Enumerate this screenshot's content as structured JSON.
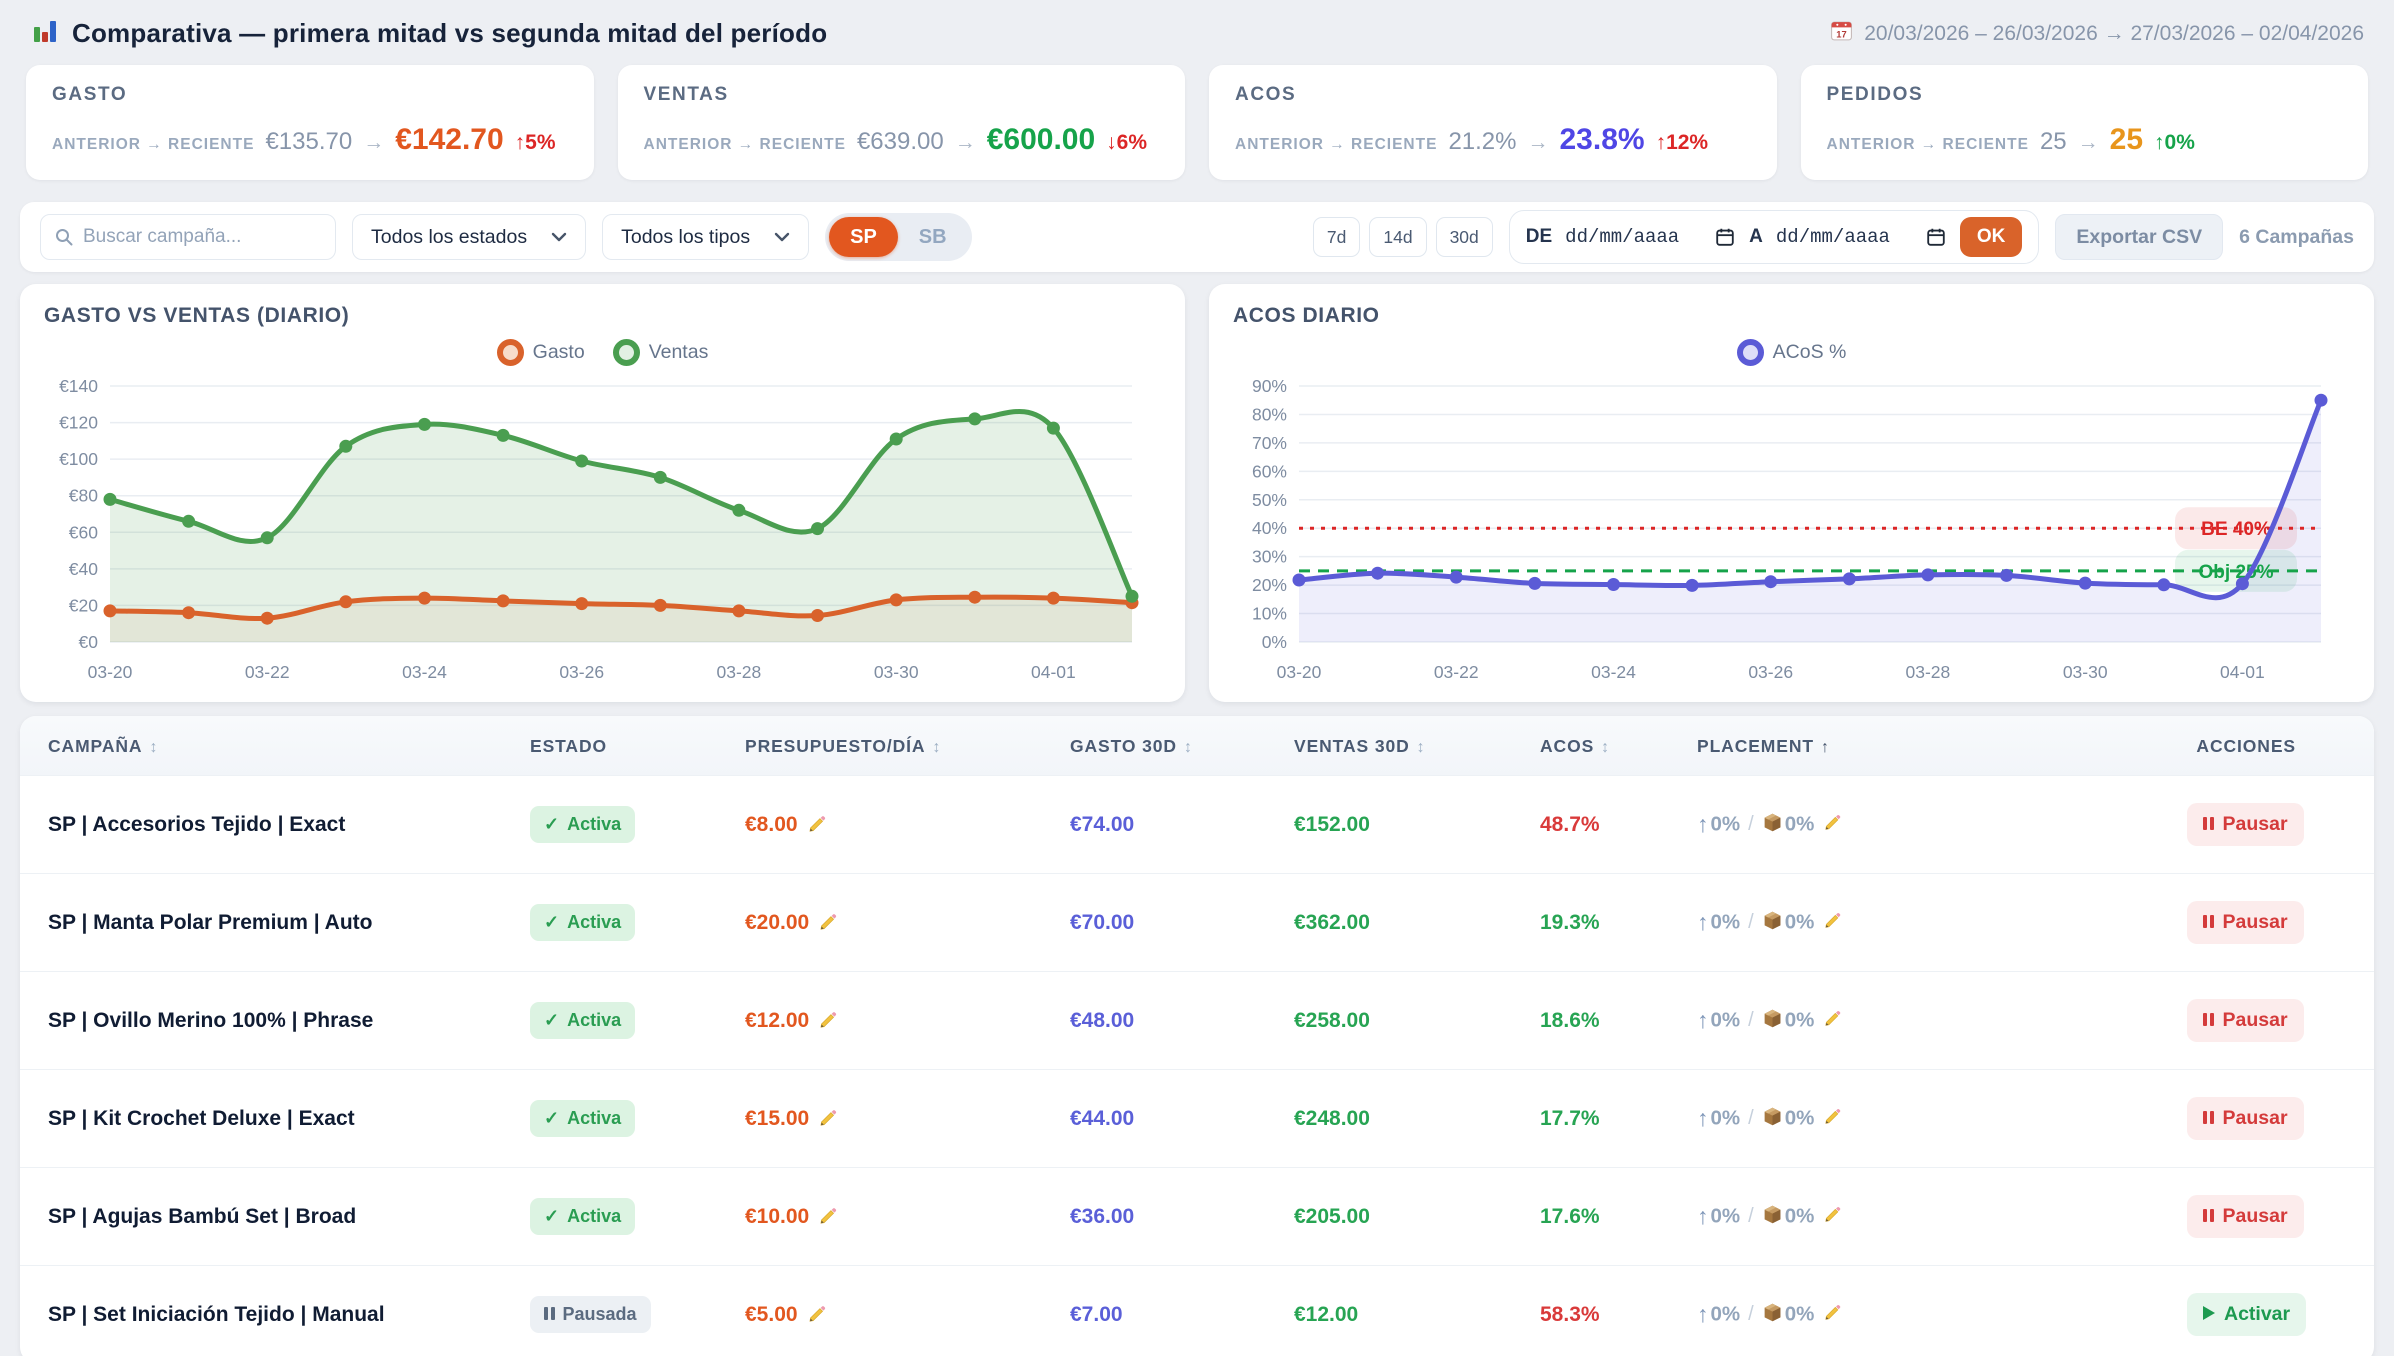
{
  "header": {
    "title": "Comparativa — primera mitad vs segunda mitad del período",
    "date_range": "20/03/2026 – 26/03/2026 → 27/03/2026 – 02/04/2026"
  },
  "kpi_meta": {
    "compare_label": "ANTERIOR → RECIENTE",
    "arrow": "→"
  },
  "kpis": [
    {
      "label": "GASTO",
      "prev": "€135.70",
      "current": "€142.70",
      "delta": "↑5%"
    },
    {
      "label": "VENTAS",
      "prev": "€639.00",
      "current": "€600.00",
      "delta": "↓6%"
    },
    {
      "label": "ACOS",
      "prev": "21.2%",
      "current": "23.8%",
      "delta": "↑12%"
    },
    {
      "label": "PEDIDOS",
      "prev": "25",
      "current": "25",
      "delta": "↑0%"
    }
  ],
  "filters": {
    "search_placeholder": "Buscar campaña...",
    "estado_select": "Todos los estados",
    "tipo_select": "Todos los tipos",
    "toggle_sp": "SP",
    "toggle_sb": "SB",
    "range_buttons": [
      "7d",
      "14d",
      "30d"
    ],
    "de_label": "DE",
    "a_label": "A",
    "date_placeholder": "dd/mm/aaaa",
    "ok_label": "OK",
    "export_label": "Exportar CSV",
    "count_label": "6 Campañas"
  },
  "colors": {
    "accent_orange": "#e2571f",
    "positive_green": "#16a34a",
    "negative_red": "#dc2626",
    "indigo": "#5b5bd6",
    "amber": "#e8951c"
  },
  "chart_data": [
    {
      "type": "line",
      "mount": "chart-gasto-ventas",
      "title": "GASTO VS VENTAS (DIARIO)",
      "x": [
        "03-20",
        "03-21",
        "03-22",
        "03-23",
        "03-24",
        "03-25",
        "03-26",
        "03-27",
        "03-28",
        "03-29",
        "03-30",
        "03-31",
        "04-01",
        "04-02"
      ],
      "xtick_indices": [
        0,
        2,
        4,
        6,
        8,
        10,
        12
      ],
      "ylim": [
        0,
        140
      ],
      "ystep": 20,
      "yfmt": "€{v}",
      "grid": true,
      "legend_position": "top-center",
      "series": [
        {
          "name": "Gasto",
          "color": "#d9622b",
          "fill": "rgba(217,98,43,0.08)",
          "values": [
            17,
            16,
            13,
            22,
            24,
            22.5,
            21,
            20,
            17,
            14.5,
            23,
            24.5,
            24,
            21.5
          ]
        },
        {
          "name": "Ventas",
          "color": "#4a9e50",
          "fill": "rgba(74,158,80,0.14)",
          "values": [
            78,
            66,
            57,
            107,
            119,
            113,
            99,
            90,
            72,
            62,
            111,
            122,
            117,
            25
          ]
        }
      ]
    },
    {
      "type": "line",
      "mount": "chart-acos",
      "title": "ACOS DIARIO",
      "x": [
        "03-20",
        "03-21",
        "03-22",
        "03-23",
        "03-24",
        "03-25",
        "03-26",
        "03-27",
        "03-28",
        "03-29",
        "03-30",
        "03-31",
        "04-01",
        "04-02"
      ],
      "xtick_indices": [
        0,
        2,
        4,
        6,
        8,
        10,
        12
      ],
      "ylim": [
        0,
        90
      ],
      "ystep": 10,
      "yfmt": "{v}%",
      "grid": true,
      "legend_position": "top-center",
      "series": [
        {
          "name": "ACoS %",
          "color": "#5b5bd6",
          "fill": "rgba(91,91,214,0.10)",
          "values": [
            21.8,
            24.2,
            22.8,
            20.6,
            20.2,
            19.9,
            21.2,
            22.2,
            23.6,
            23.4,
            20.7,
            20.1,
            20.5,
            85
          ]
        }
      ],
      "reflines": [
        {
          "value": 40,
          "label": "BE 40%",
          "color": "#dc2626",
          "dash": "4 7",
          "pill": "rgba(220,38,38,0.10)"
        },
        {
          "value": 25,
          "label": "Obj 25%",
          "color": "#16a34a",
          "dash": "11 8",
          "pill": "rgba(22,163,74,0.10)"
        }
      ]
    }
  ],
  "table": {
    "placement_separator": "/",
    "columns": [
      {
        "label": "CAMPAÑA",
        "sort": "↕"
      },
      {
        "label": "ESTADO",
        "sort": ""
      },
      {
        "label": "PRESUPUESTO/DÍA",
        "sort": "↕"
      },
      {
        "label": "GASTO 30D",
        "sort": "↕"
      },
      {
        "label": "VENTAS 30D",
        "sort": "↕"
      },
      {
        "label": "ACOS",
        "sort": "↕"
      },
      {
        "label": "PLACEMENT",
        "sort": "↑"
      },
      {
        "label": "ACCIONES",
        "sort": ""
      }
    ],
    "rows": [
      {
        "name": "SP | Accesorios Tejido | Exact",
        "estado": "Activa",
        "presupuesto": "€8.00",
        "gasto_30d": "€74.00",
        "ventas_30d": "€152.00",
        "acos": "48.7%",
        "placement_top": "0%",
        "placement_product": "0%",
        "action": "Pausar"
      },
      {
        "name": "SP | Manta Polar Premium | Auto",
        "estado": "Activa",
        "presupuesto": "€20.00",
        "gasto_30d": "€70.00",
        "ventas_30d": "€362.00",
        "acos": "19.3%",
        "placement_top": "0%",
        "placement_product": "0%",
        "action": "Pausar"
      },
      {
        "name": "SP | Ovillo Merino 100% | Phrase",
        "estado": "Activa",
        "presupuesto": "€12.00",
        "gasto_30d": "€48.00",
        "ventas_30d": "€258.00",
        "acos": "18.6%",
        "placement_top": "0%",
        "placement_product": "0%",
        "action": "Pausar"
      },
      {
        "name": "SP | Kit Crochet Deluxe | Exact",
        "estado": "Activa",
        "presupuesto": "€15.00",
        "gasto_30d": "€44.00",
        "ventas_30d": "€248.00",
        "acos": "17.7%",
        "placement_top": "0%",
        "placement_product": "0%",
        "action": "Pausar"
      },
      {
        "name": "SP | Agujas Bambú Set | Broad",
        "estado": "Activa",
        "presupuesto": "€10.00",
        "gasto_30d": "€36.00",
        "ventas_30d": "€205.00",
        "acos": "17.6%",
        "placement_top": "0%",
        "placement_product": "0%",
        "action": "Pausar"
      },
      {
        "name": "SP | Set Iniciación Tejido | Manual",
        "estado": "Pausada",
        "presupuesto": "€5.00",
        "gasto_30d": "€7.00",
        "ventas_30d": "€12.00",
        "acos": "58.3%",
        "placement_top": "0%",
        "placement_product": "0%",
        "action": "Activar"
      }
    ]
  }
}
